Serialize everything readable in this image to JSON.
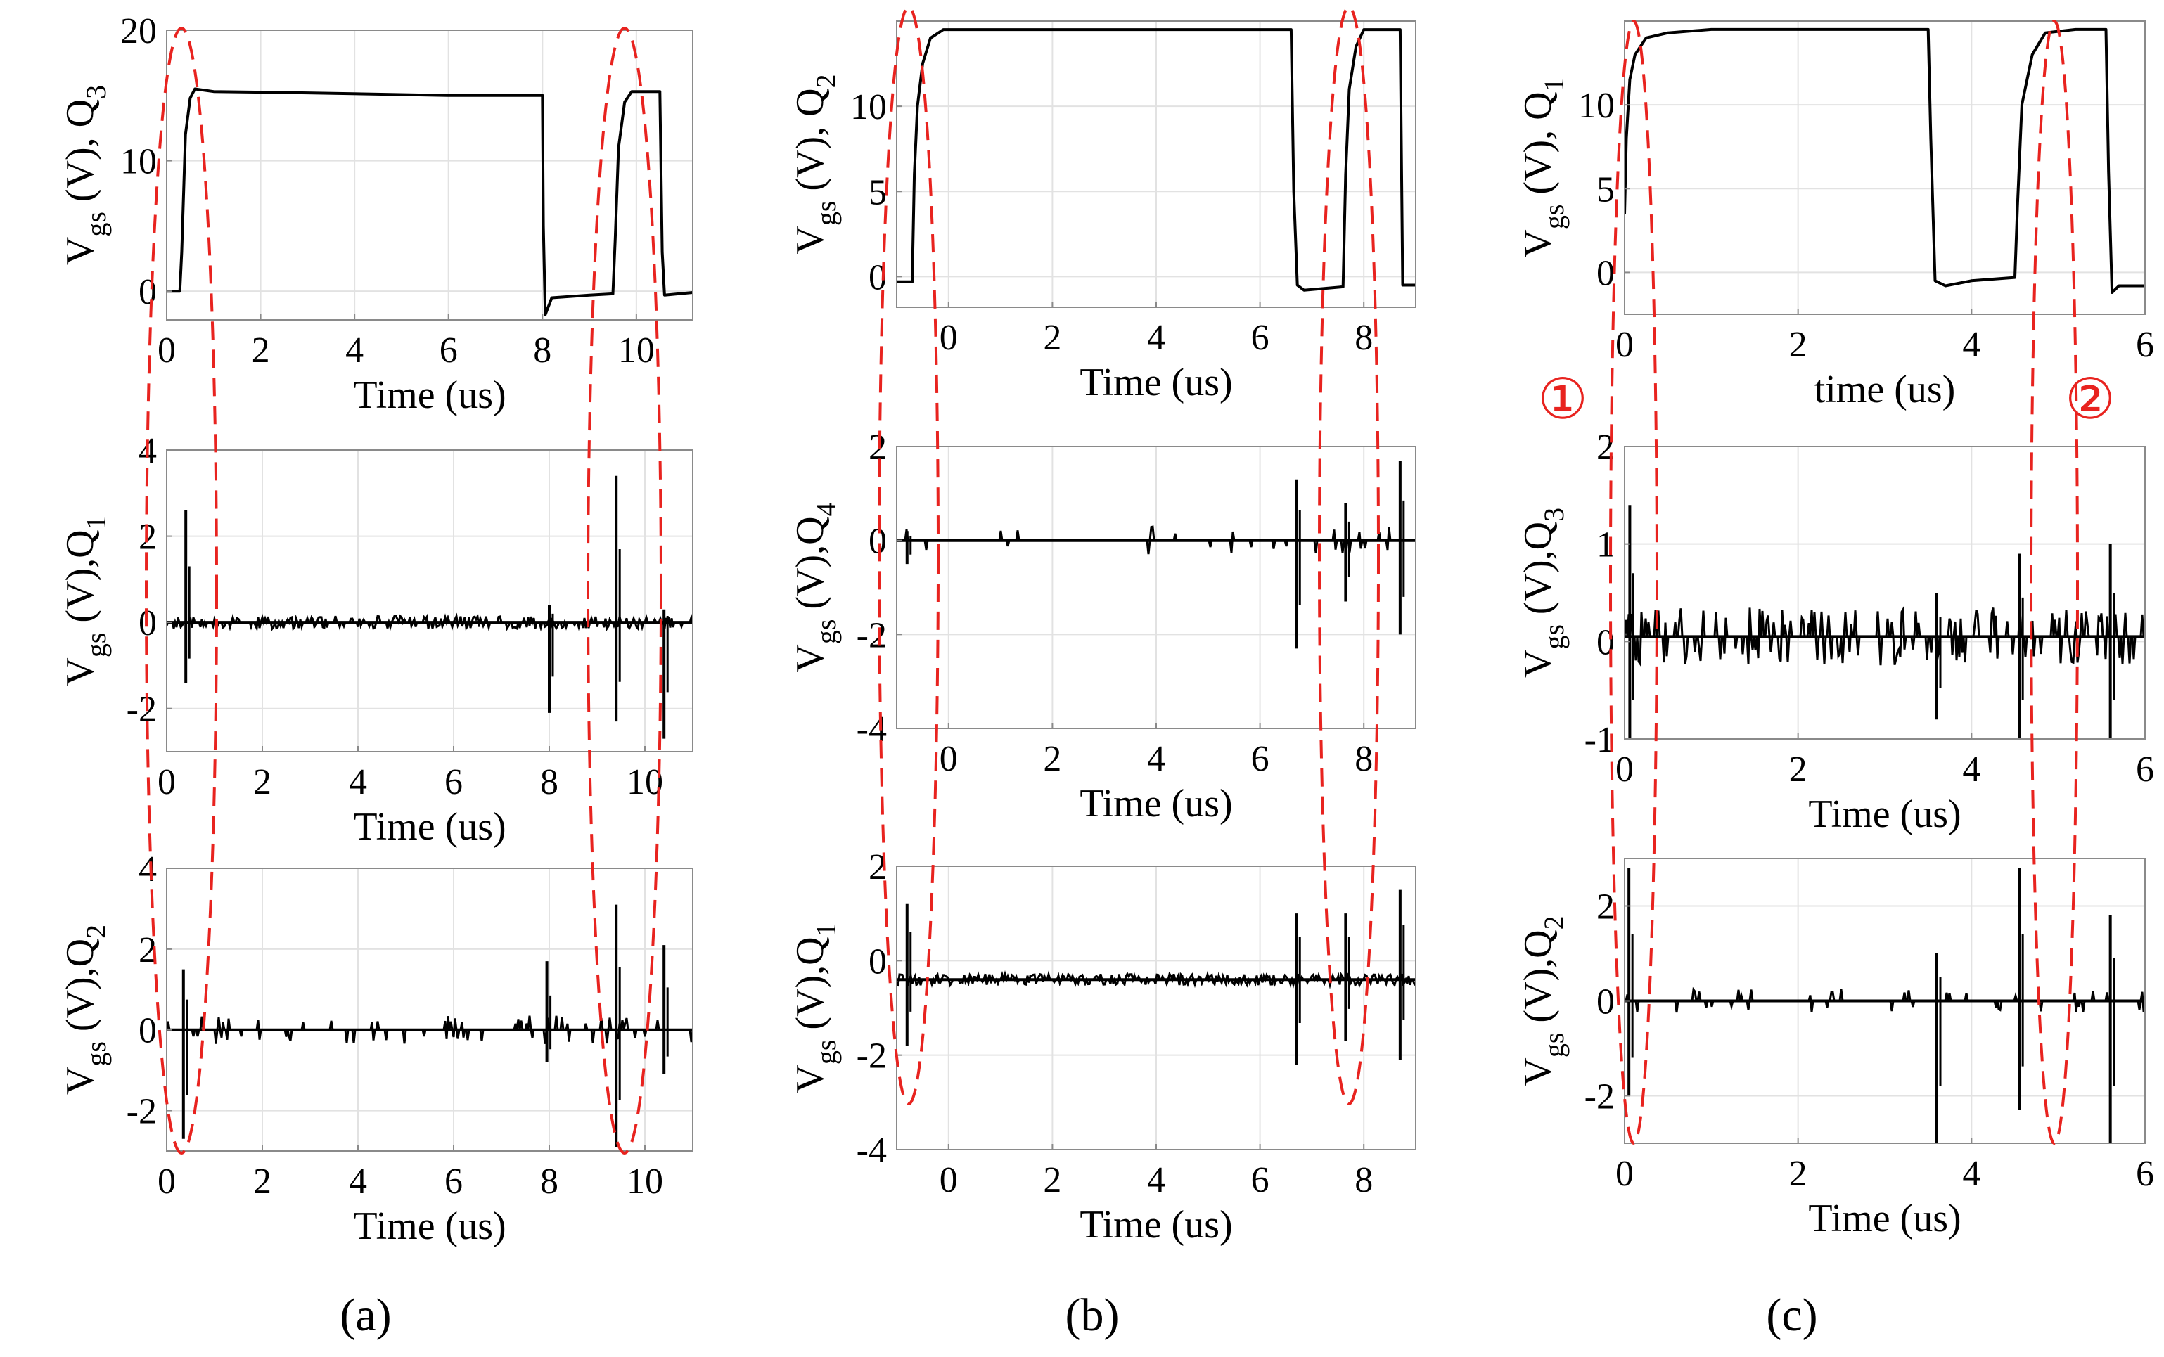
{
  "figure": {
    "panel_labels": [
      "(a)",
      "(b)",
      "(c)"
    ],
    "markers": [
      "①",
      "②"
    ],
    "colors": {
      "trace": "#000000",
      "grid": "#e2e2e2",
      "frame": "#8a8a8a",
      "highlight": "#e8231f",
      "text": "#000000"
    }
  },
  "chart_data": [
    {
      "id": "a1",
      "type": "line",
      "panel": "(a)",
      "ylabel": {
        "main": "V",
        "sub": "gs",
        "rest": " (V), Q",
        "idx": "3"
      },
      "xlabel": "Time (us)",
      "xlim": [
        0,
        11.2
      ],
      "ylim": [
        -2.2,
        20
      ],
      "xticks": [
        0,
        2,
        4,
        6,
        8,
        10
      ],
      "yticks": [
        0,
        10,
        20
      ],
      "series": [
        {
          "name": "Vgs Q3",
          "x": [
            0,
            0.28,
            0.32,
            0.4,
            0.5,
            0.6,
            1.0,
            3.0,
            6.0,
            8.0,
            8.02,
            8.06,
            8.2,
            9.0,
            9.5,
            9.55,
            9.62,
            9.75,
            9.9,
            10.2,
            10.5,
            10.55,
            10.6,
            11.2
          ],
          "y": [
            0,
            0,
            3,
            12,
            14.8,
            15.5,
            15.3,
            15.2,
            15,
            15,
            5,
            -1.8,
            -0.5,
            -0.3,
            -0.2,
            4,
            11,
            14.5,
            15.3,
            15.3,
            15.3,
            3,
            -0.3,
            -0.1
          ]
        }
      ],
      "spikes": []
    },
    {
      "id": "a2",
      "type": "line",
      "panel": "(a)",
      "ylabel": {
        "main": "V",
        "sub": "gs",
        "rest": " (V),Q",
        "idx": "1"
      },
      "xlabel": "Time (us)",
      "xlim": [
        0,
        11
      ],
      "ylim": [
        -3,
        4
      ],
      "xticks": [
        0,
        2,
        4,
        6,
        8,
        10
      ],
      "yticks": [
        -2,
        0,
        2,
        4
      ],
      "series": [
        {
          "name": "Vgs Q1",
          "x": [
            0,
            11
          ],
          "y": [
            0,
            0
          ]
        }
      ],
      "noise": {
        "base": 0,
        "amp": 0.15,
        "density": 0.5
      },
      "spikes": [
        [
          0.4,
          2.6,
          -1.4
        ],
        [
          8.0,
          0.4,
          -2.1
        ],
        [
          9.4,
          3.4,
          -2.3
        ],
        [
          10.4,
          0.3,
          -2.7
        ]
      ]
    },
    {
      "id": "a3",
      "type": "line",
      "panel": "(a)",
      "ylabel": {
        "main": "V",
        "sub": "gs",
        "rest": " (V),Q",
        "idx": "2"
      },
      "xlabel": "Time (us)",
      "xlim": [
        0,
        11
      ],
      "ylim": [
        -3,
        4
      ],
      "xticks": [
        0,
        2,
        4,
        6,
        8,
        10
      ],
      "yticks": [
        -2,
        0,
        2,
        4
      ],
      "series": [
        {
          "name": "Vgs Q2",
          "x": [
            0,
            11
          ],
          "y": [
            0,
            0
          ]
        }
      ],
      "noise": {
        "base": 0,
        "amp": 0.35,
        "density": 0.15
      },
      "spikes": [
        [
          0.35,
          1.5,
          -2.7
        ],
        [
          7.95,
          1.7,
          -0.8
        ],
        [
          9.4,
          3.1,
          -2.9
        ],
        [
          10.4,
          2.1,
          -1.1
        ]
      ]
    },
    {
      "id": "b1",
      "type": "line",
      "panel": "(b)",
      "ylabel": {
        "main": "V",
        "sub": "gs",
        "rest": " (V), Q",
        "idx": "2"
      },
      "xlabel": "Time (us)",
      "xlim": [
        -1,
        9
      ],
      "ylim": [
        -1.8,
        15
      ],
      "xticks": [
        0,
        2,
        4,
        6,
        8
      ],
      "yticks": [
        0,
        5,
        10
      ],
      "series": [
        {
          "name": "Vgs Q2",
          "x": [
            -1,
            -0.7,
            -0.66,
            -0.6,
            -0.5,
            -0.35,
            -0.1,
            2.0,
            6.6,
            6.65,
            6.72,
            6.85,
            7.6,
            7.65,
            7.72,
            7.85,
            8.0,
            8.6,
            8.7,
            8.75,
            9.0
          ],
          "y": [
            -0.3,
            -0.3,
            6,
            10,
            12.5,
            14,
            14.5,
            14.5,
            14.5,
            5,
            -0.5,
            -0.8,
            -0.6,
            6,
            11,
            13.5,
            14.5,
            14.5,
            14.5,
            -0.5,
            -0.5
          ]
        }
      ],
      "spikes": []
    },
    {
      "id": "b2",
      "type": "line",
      "panel": "(b)",
      "ylabel": {
        "main": "V",
        "sub": "gs",
        "rest": " (V),Q",
        "idx": "4"
      },
      "xlabel": "Time (us)",
      "xlim": [
        -1,
        9
      ],
      "ylim": [
        -4,
        2
      ],
      "xticks": [
        0,
        2,
        4,
        6,
        8
      ],
      "yticks": [
        -4,
        -2,
        0,
        2
      ],
      "series": [
        {
          "name": "Vgs Q4",
          "x": [
            -1,
            9
          ],
          "y": [
            0,
            0
          ]
        }
      ],
      "noise": {
        "base": 0,
        "amp": 0.3,
        "density": 0.08
      },
      "spikes": [
        [
          -0.8,
          0.2,
          -0.5
        ],
        [
          6.7,
          1.3,
          -2.3
        ],
        [
          7.65,
          0.8,
          -1.3
        ],
        [
          8.7,
          1.7,
          -2.0
        ]
      ]
    },
    {
      "id": "b3",
      "type": "line",
      "panel": "(b)",
      "ylabel": {
        "main": "V",
        "sub": "gs",
        "rest": " (V),Q",
        "idx": "1"
      },
      "xlabel": "Time (us)",
      "xlim": [
        -1,
        9
      ],
      "ylim": [
        -4,
        2
      ],
      "xticks": [
        0,
        2,
        4,
        6,
        8
      ],
      "yticks": [
        -4,
        -2,
        0,
        2
      ],
      "series": [
        {
          "name": "Vgs Q1",
          "x": [
            -1,
            9
          ],
          "y": [
            -0.4,
            -0.4
          ]
        }
      ],
      "noise": {
        "base": -0.4,
        "amp": 0.12,
        "density": 0.6
      },
      "spikes": [
        [
          -0.8,
          1.2,
          -1.8
        ],
        [
          6.7,
          1.0,
          -2.2
        ],
        [
          7.65,
          1.0,
          -1.7
        ],
        [
          8.7,
          1.5,
          -2.1
        ]
      ]
    },
    {
      "id": "c1",
      "type": "line",
      "panel": "(c)",
      "ylabel": {
        "main": "V",
        "sub": "gs",
        "rest": " (V), Q",
        "idx": "1"
      },
      "xlabel": "time (us)",
      "xlim": [
        0,
        6
      ],
      "ylim": [
        -2.5,
        15
      ],
      "xticks": [
        0,
        2,
        4,
        6
      ],
      "yticks": [
        0,
        5,
        10
      ],
      "series": [
        {
          "name": "Vgs Q1",
          "x": [
            0,
            0.02,
            0.06,
            0.12,
            0.25,
            0.5,
            1.0,
            3.5,
            3.53,
            3.58,
            3.7,
            4.0,
            4.5,
            4.53,
            4.58,
            4.7,
            4.85,
            5.2,
            5.55,
            5.58,
            5.62,
            5.7,
            6.0
          ],
          "y": [
            3.5,
            8,
            11.5,
            13,
            14,
            14.3,
            14.5,
            14.5,
            8,
            -0.5,
            -0.8,
            -0.5,
            -0.3,
            4,
            10,
            13,
            14.3,
            14.5,
            14.5,
            6,
            -1.2,
            -0.8,
            -0.8
          ]
        }
      ],
      "spikes": []
    },
    {
      "id": "c2",
      "type": "line",
      "panel": "(c)",
      "ylabel": {
        "main": "V",
        "sub": "gs",
        "rest": " (V),Q",
        "idx": "3"
      },
      "xlabel": "Time (us)",
      "xlim": [
        0,
        6
      ],
      "ylim": [
        -1,
        2
      ],
      "xticks": [
        0,
        2,
        4,
        6
      ],
      "yticks": [
        -1,
        0,
        1,
        2
      ],
      "series": [
        {
          "name": "Vgs Q3",
          "x": [
            0,
            6
          ],
          "y": [
            0.05,
            0.05
          ]
        }
      ],
      "noise": {
        "base": 0.05,
        "amp": 0.3,
        "density": 0.35
      },
      "spikes": [
        [
          0.06,
          1.4,
          -1.0
        ],
        [
          3.6,
          0.5,
          -0.8
        ],
        [
          4.55,
          0.9,
          -1.0
        ],
        [
          5.6,
          1.0,
          -1.0
        ]
      ]
    },
    {
      "id": "c3",
      "type": "line",
      "panel": "(c)",
      "ylabel": {
        "main": "V",
        "sub": "gs",
        "rest": " (V),Q",
        "idx": "2"
      },
      "xlabel": "Time (us)",
      "xlim": [
        0,
        6
      ],
      "ylim": [
        -3,
        3
      ],
      "xticks": [
        0,
        2,
        4,
        6
      ],
      "yticks": [
        -2,
        0,
        2
      ],
      "series": [
        {
          "name": "Vgs Q2",
          "x": [
            0,
            6
          ],
          "y": [
            0,
            0
          ]
        }
      ],
      "noise": {
        "base": 0,
        "amp": 0.25,
        "density": 0.15
      },
      "spikes": [
        [
          0.05,
          2.8,
          -2.0
        ],
        [
          3.6,
          1.0,
          -3.0
        ],
        [
          4.55,
          2.8,
          -2.3
        ],
        [
          5.6,
          1.8,
          -3.0
        ]
      ]
    }
  ]
}
